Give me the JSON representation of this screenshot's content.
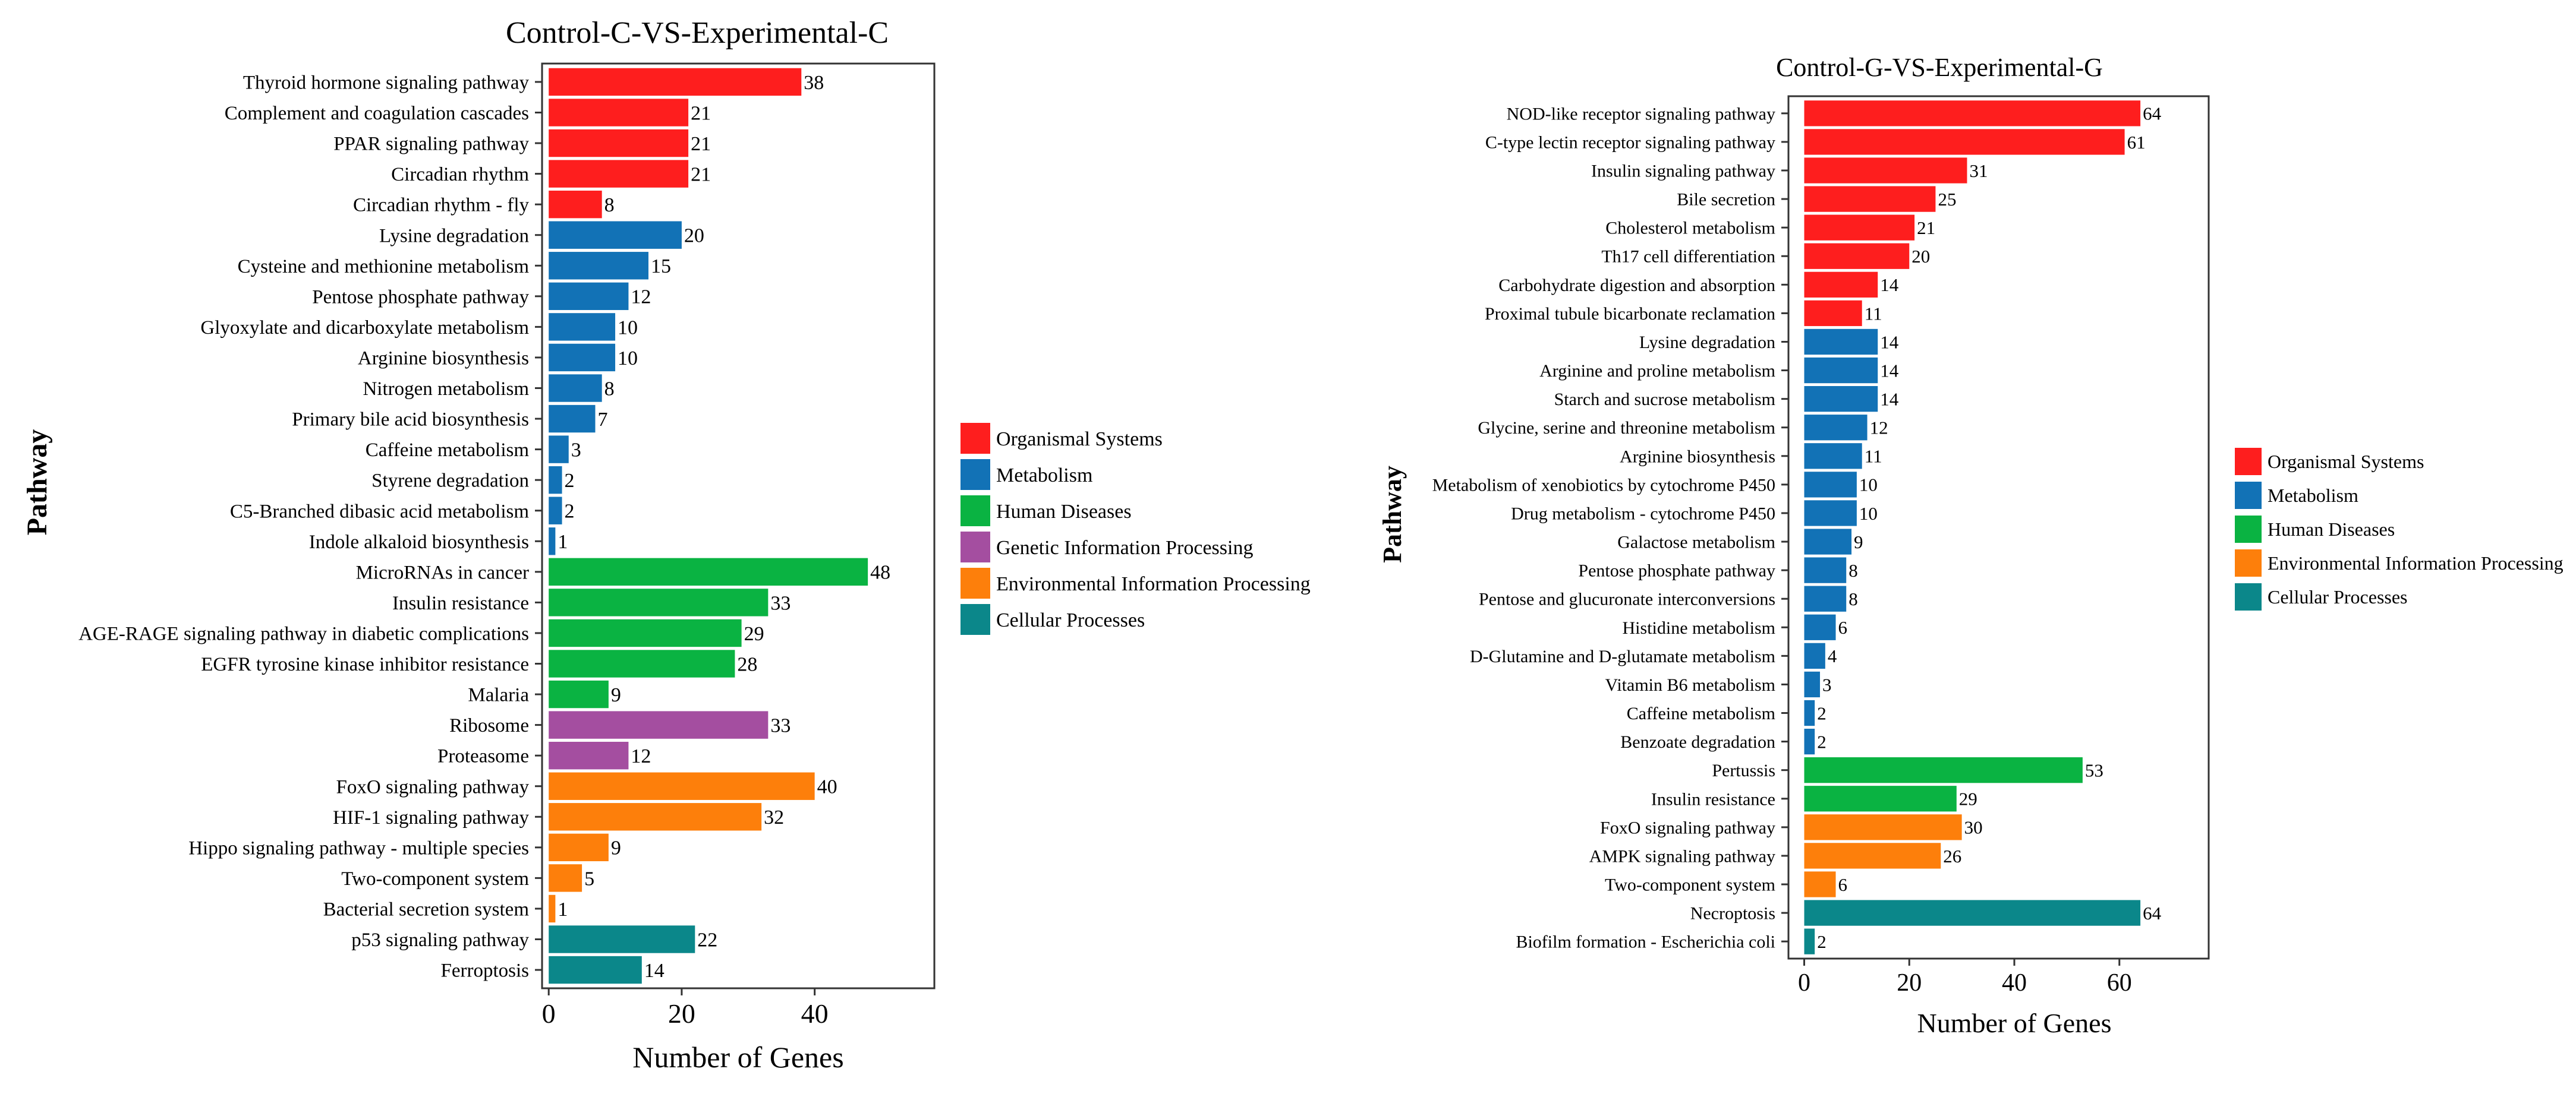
{
  "figure": {
    "x_axis_label": "Number of Genes",
    "y_axis_label": "Pathway"
  },
  "categories_palette": {
    "Organismal Systems": "#fe1e1e",
    "Metabolism": "#1272b6",
    "Human Diseases": "#0ab342",
    "Genetic Information Processing": "#a44ea0",
    "Environmental Information Processing": "#fd7f0b",
    "Cellular Processes": "#0b878a"
  },
  "chart_data": [
    {
      "type": "bar",
      "orientation": "horizontal",
      "title": "Control-C-VS-Experimental-C",
      "xlabel": "Number of Genes",
      "ylabel": "Pathway",
      "xlim": [
        -1,
        58
      ],
      "xticks": [
        0,
        20,
        40
      ],
      "grid": false,
      "legend_position": "right",
      "legend": [
        "Organismal Systems",
        "Metabolism",
        "Human Diseases",
        "Genetic Information Processing",
        "Environmental Information Processing",
        "Cellular Processes"
      ],
      "bars": [
        {
          "label": "Thyroid hormone signaling pathway",
          "value": 38,
          "category": "Organismal Systems"
        },
        {
          "label": "Complement and coagulation cascades",
          "value": 21,
          "category": "Organismal Systems"
        },
        {
          "label": "PPAR signaling pathway",
          "value": 21,
          "category": "Organismal Systems"
        },
        {
          "label": "Circadian rhythm",
          "value": 21,
          "category": "Organismal Systems"
        },
        {
          "label": "Circadian rhythm - fly",
          "value": 8,
          "category": "Organismal Systems"
        },
        {
          "label": "Lysine degradation",
          "value": 20,
          "category": "Metabolism"
        },
        {
          "label": "Cysteine and methionine metabolism",
          "value": 15,
          "category": "Metabolism"
        },
        {
          "label": "Pentose phosphate pathway",
          "value": 12,
          "category": "Metabolism"
        },
        {
          "label": "Glyoxylate and dicarboxylate metabolism",
          "value": 10,
          "category": "Metabolism"
        },
        {
          "label": "Arginine biosynthesis",
          "value": 10,
          "category": "Metabolism"
        },
        {
          "label": "Nitrogen metabolism",
          "value": 8,
          "category": "Metabolism"
        },
        {
          "label": "Primary bile acid biosynthesis",
          "value": 7,
          "category": "Metabolism"
        },
        {
          "label": "Caffeine metabolism",
          "value": 3,
          "category": "Metabolism"
        },
        {
          "label": "Styrene degradation",
          "value": 2,
          "category": "Metabolism"
        },
        {
          "label": "C5-Branched dibasic acid metabolism",
          "value": 2,
          "category": "Metabolism"
        },
        {
          "label": "Indole alkaloid biosynthesis",
          "value": 1,
          "category": "Metabolism"
        },
        {
          "label": "MicroRNAs in cancer",
          "value": 48,
          "category": "Human Diseases"
        },
        {
          "label": "Insulin resistance",
          "value": 33,
          "category": "Human Diseases"
        },
        {
          "label": "AGE-RAGE signaling pathway in diabetic complications",
          "value": 29,
          "category": "Human Diseases"
        },
        {
          "label": "EGFR tyrosine kinase inhibitor resistance",
          "value": 28,
          "category": "Human Diseases"
        },
        {
          "label": "Malaria",
          "value": 9,
          "category": "Human Diseases"
        },
        {
          "label": "Ribosome",
          "value": 33,
          "category": "Genetic Information Processing"
        },
        {
          "label": "Proteasome",
          "value": 12,
          "category": "Genetic Information Processing"
        },
        {
          "label": "FoxO signaling pathway",
          "value": 40,
          "category": "Environmental Information Processing"
        },
        {
          "label": "HIF-1 signaling pathway",
          "value": 32,
          "category": "Environmental Information Processing"
        },
        {
          "label": "Hippo signaling pathway - multiple species",
          "value": 9,
          "category": "Environmental Information Processing"
        },
        {
          "label": "Two-component system",
          "value": 5,
          "category": "Environmental Information Processing"
        },
        {
          "label": "Bacterial secretion system",
          "value": 1,
          "category": "Environmental Information Processing"
        },
        {
          "label": "p53 signaling pathway",
          "value": 22,
          "category": "Cellular Processes"
        },
        {
          "label": "Ferroptosis",
          "value": 14,
          "category": "Cellular Processes"
        }
      ]
    },
    {
      "type": "bar",
      "orientation": "horizontal",
      "title": "Control-G-VS-Experimental-G",
      "xlabel": "Number of Genes",
      "ylabel": "Pathway",
      "xlim": [
        -3,
        77
      ],
      "xticks": [
        0,
        20,
        40,
        60
      ],
      "grid": false,
      "legend_position": "right",
      "legend": [
        "Organismal Systems",
        "Metabolism",
        "Human Diseases",
        "Environmental Information Processing",
        "Cellular Processes"
      ],
      "bars": [
        {
          "label": "NOD-like receptor signaling pathway",
          "value": 64,
          "category": "Organismal Systems"
        },
        {
          "label": "C-type lectin receptor signaling pathway",
          "value": 61,
          "category": "Organismal Systems"
        },
        {
          "label": "Insulin signaling pathway",
          "value": 31,
          "category": "Organismal Systems"
        },
        {
          "label": "Bile secretion",
          "value": 25,
          "category": "Organismal Systems"
        },
        {
          "label": "Cholesterol metabolism",
          "value": 21,
          "category": "Organismal Systems"
        },
        {
          "label": "Th17 cell differentiation",
          "value": 20,
          "category": "Organismal Systems"
        },
        {
          "label": "Carbohydrate digestion and absorption",
          "value": 14,
          "category": "Organismal Systems"
        },
        {
          "label": "Proximal tubule bicarbonate reclamation",
          "value": 11,
          "category": "Organismal Systems"
        },
        {
          "label": "Lysine degradation",
          "value": 14,
          "category": "Metabolism"
        },
        {
          "label": "Arginine and proline metabolism",
          "value": 14,
          "category": "Metabolism"
        },
        {
          "label": "Starch and sucrose metabolism",
          "value": 14,
          "category": "Metabolism"
        },
        {
          "label": "Glycine, serine and threonine metabolism",
          "value": 12,
          "category": "Metabolism"
        },
        {
          "label": "Arginine biosynthesis",
          "value": 11,
          "category": "Metabolism"
        },
        {
          "label": "Metabolism of xenobiotics by cytochrome P450",
          "value": 10,
          "category": "Metabolism"
        },
        {
          "label": "Drug metabolism - cytochrome P450",
          "value": 10,
          "category": "Metabolism"
        },
        {
          "label": "Galactose metabolism",
          "value": 9,
          "category": "Metabolism"
        },
        {
          "label": "Pentose phosphate pathway",
          "value": 8,
          "category": "Metabolism"
        },
        {
          "label": "Pentose and glucuronate interconversions",
          "value": 8,
          "category": "Metabolism"
        },
        {
          "label": "Histidine metabolism",
          "value": 6,
          "category": "Metabolism"
        },
        {
          "label": "D-Glutamine and D-glutamate metabolism",
          "value": 4,
          "category": "Metabolism"
        },
        {
          "label": "Vitamin B6 metabolism",
          "value": 3,
          "category": "Metabolism"
        },
        {
          "label": "Caffeine metabolism",
          "value": 2,
          "category": "Metabolism"
        },
        {
          "label": "Benzoate degradation",
          "value": 2,
          "category": "Metabolism"
        },
        {
          "label": "Pertussis",
          "value": 53,
          "category": "Human Diseases"
        },
        {
          "label": "Insulin resistance",
          "value": 29,
          "category": "Human Diseases"
        },
        {
          "label": "FoxO signaling pathway",
          "value": 30,
          "category": "Environmental Information Processing"
        },
        {
          "label": "AMPK signaling pathway",
          "value": 26,
          "category": "Environmental Information Processing"
        },
        {
          "label": "Two-component system",
          "value": 6,
          "category": "Environmental Information Processing"
        },
        {
          "label": "Necroptosis",
          "value": 64,
          "category": "Cellular Processes"
        },
        {
          "label": "Biofilm formation - Escherichia coli",
          "value": 2,
          "category": "Cellular Processes"
        }
      ]
    }
  ]
}
